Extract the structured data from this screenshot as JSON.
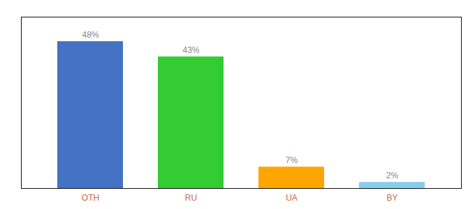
{
  "chart_data": {
    "type": "bar",
    "categories": [
      "OTH",
      "RU",
      "UA",
      "BY"
    ],
    "values": [
      48,
      43,
      7,
      2
    ],
    "value_labels": [
      "48%",
      "43%",
      "7%",
      "2%"
    ],
    "colors": [
      "#4472C4",
      "#33CC33",
      "#FFA500",
      "#87CEEB"
    ],
    "ylim": [
      0,
      56
    ],
    "data_labels": true,
    "tick_labels": "x",
    "grid": false
  }
}
